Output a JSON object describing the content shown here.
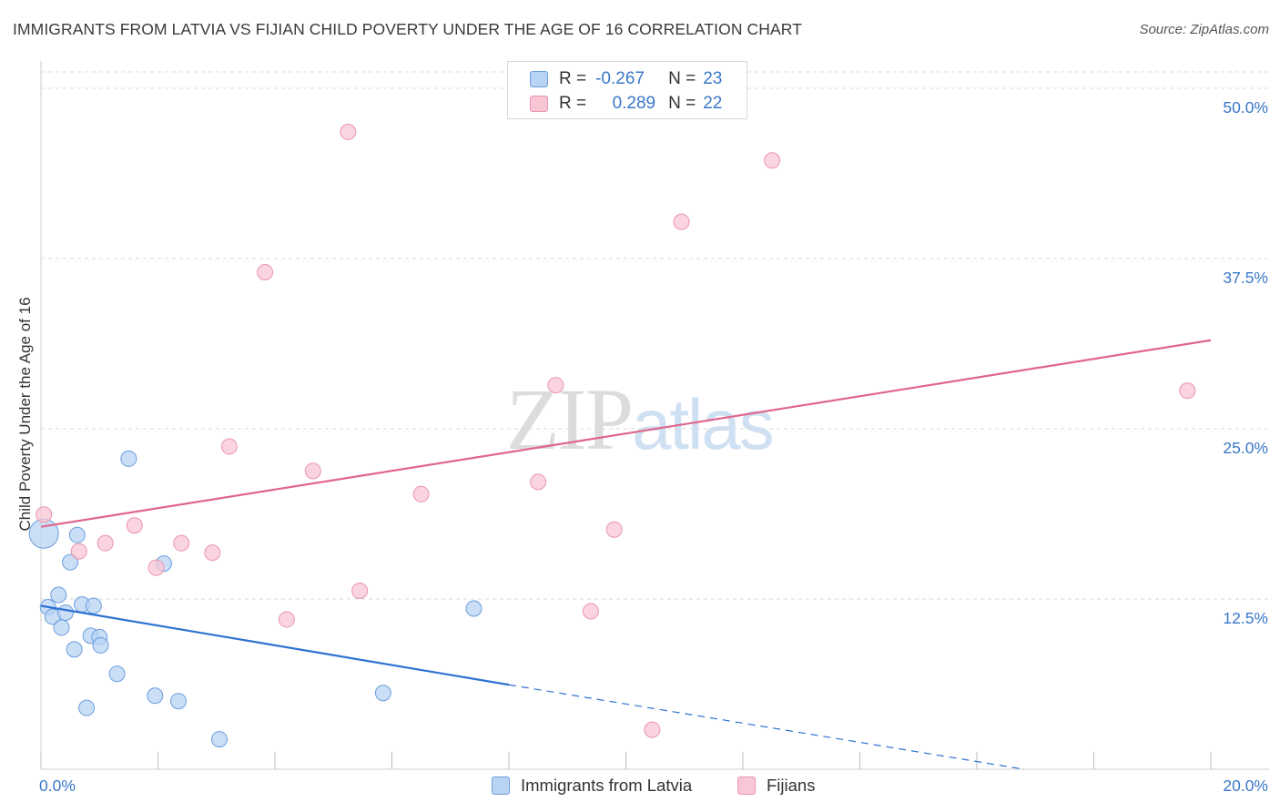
{
  "title": "IMMIGRANTS FROM LATVIA VS FIJIAN CHILD POVERTY UNDER THE AGE OF 16 CORRELATION CHART",
  "source": "Source: ZipAtlas.com",
  "watermark": {
    "zip": "ZIP",
    "atlas": "atlas"
  },
  "legend": {
    "r_label": "R =",
    "n_label": "N =",
    "rows": [
      {
        "r": "-0.267",
        "n": "23"
      },
      {
        "r": "0.289",
        "n": "22"
      }
    ]
  },
  "colors": {
    "blue_fill": "#b8d3f3",
    "blue_stroke": "#6a9fde",
    "blue_line": "#2e72d2",
    "pink_fill": "#f8c6d4",
    "pink_stroke": "#ea95ae",
    "pink_line": "#e0668c",
    "tick_text": "#3a78c9",
    "grid": "#d9d9d9"
  },
  "chart_data": {
    "type": "scatter",
    "title": "IMMIGRANTS FROM LATVIA VS FIJIAN CHILD POVERTY UNDER THE AGE OF 16 CORRELATION CHART",
    "xlabel": "",
    "ylabel": "Child Poverty Under the Age of 16",
    "xlim": [
      0,
      20
    ],
    "ylim": [
      0,
      50
    ],
    "x_tick_labels": [
      "0.0%",
      "20.0%"
    ],
    "y_ticks": [
      12.5,
      25.0,
      37.5,
      50.0
    ],
    "y_tick_labels": [
      "12.5%",
      "25.0%",
      "37.5%",
      "50.0%"
    ],
    "grid": true,
    "series": [
      {
        "name": "Immigrants from Latvia",
        "points": [
          {
            "x": 0.05,
            "y": 17.3,
            "big": true
          },
          {
            "x": 0.12,
            "y": 11.9
          },
          {
            "x": 0.2,
            "y": 11.2
          },
          {
            "x": 0.3,
            "y": 12.8
          },
          {
            "x": 0.35,
            "y": 10.4
          },
          {
            "x": 0.42,
            "y": 11.5
          },
          {
            "x": 0.5,
            "y": 15.2
          },
          {
            "x": 0.57,
            "y": 8.8
          },
          {
            "x": 0.62,
            "y": 17.2
          },
          {
            "x": 0.7,
            "y": 12.1
          },
          {
            "x": 0.78,
            "y": 4.5
          },
          {
            "x": 0.85,
            "y": 9.8
          },
          {
            "x": 0.9,
            "y": 12.0
          },
          {
            "x": 1.0,
            "y": 9.7
          },
          {
            "x": 1.02,
            "y": 9.1
          },
          {
            "x": 1.3,
            "y": 7.0
          },
          {
            "x": 1.5,
            "y": 22.8
          },
          {
            "x": 1.95,
            "y": 5.4
          },
          {
            "x": 2.1,
            "y": 15.1
          },
          {
            "x": 2.35,
            "y": 5.0
          },
          {
            "x": 3.05,
            "y": 2.2
          },
          {
            "x": 5.85,
            "y": 5.6
          },
          {
            "x": 7.4,
            "y": 11.8
          }
        ],
        "trend": {
          "x0": 0,
          "y0": 12.0,
          "x1": 8.0,
          "y1": 6.2,
          "dash_x1": 16.8,
          "dash_y1": 0
        }
      },
      {
        "name": "Fijians",
        "points": [
          {
            "x": 0.05,
            "y": 18.7
          },
          {
            "x": 0.65,
            "y": 16.0
          },
          {
            "x": 1.1,
            "y": 16.6
          },
          {
            "x": 1.6,
            "y": 17.9
          },
          {
            "x": 1.97,
            "y": 14.8
          },
          {
            "x": 2.4,
            "y": 16.6
          },
          {
            "x": 2.93,
            "y": 15.9
          },
          {
            "x": 3.22,
            "y": 23.7
          },
          {
            "x": 3.83,
            "y": 36.5
          },
          {
            "x": 4.2,
            "y": 11.0
          },
          {
            "x": 4.65,
            "y": 21.9
          },
          {
            "x": 5.25,
            "y": 46.8
          },
          {
            "x": 5.45,
            "y": 13.1
          },
          {
            "x": 6.5,
            "y": 20.2
          },
          {
            "x": 8.5,
            "y": 21.1
          },
          {
            "x": 8.8,
            "y": 28.2
          },
          {
            "x": 9.4,
            "y": 11.6
          },
          {
            "x": 9.8,
            "y": 17.6
          },
          {
            "x": 10.45,
            "y": 2.9
          },
          {
            "x": 10.95,
            "y": 40.2
          },
          {
            "x": 12.5,
            "y": 44.7
          },
          {
            "x": 19.6,
            "y": 27.8
          }
        ],
        "trend": {
          "x0": 0,
          "y0": 17.8,
          "x1": 20,
          "y1": 31.5
        }
      }
    ]
  }
}
